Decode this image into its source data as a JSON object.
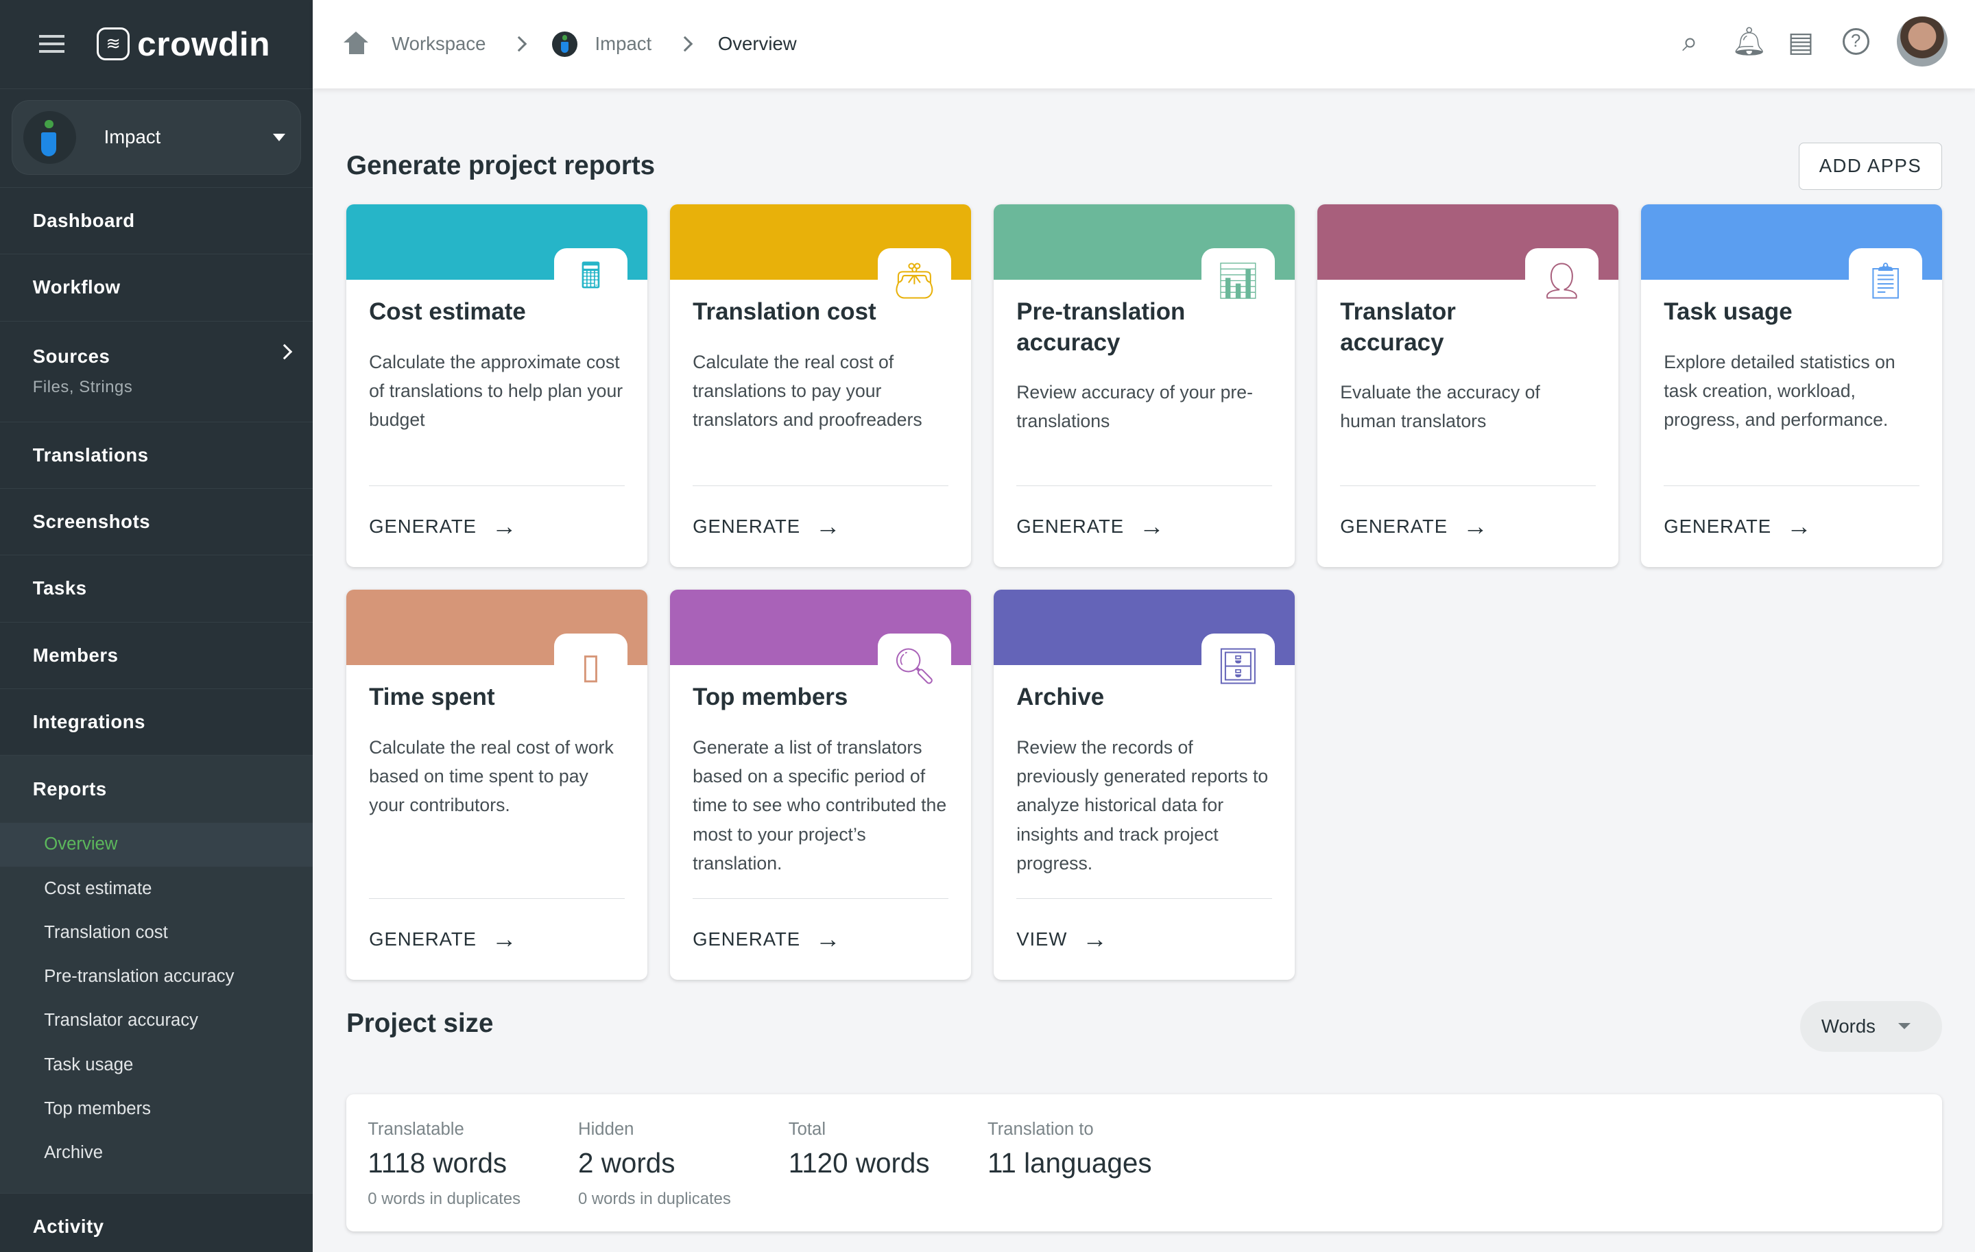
{
  "app": {
    "logo_text": "crowdin"
  },
  "project": {
    "name": "Impact"
  },
  "sidebar": {
    "items": [
      {
        "label": "Dashboard"
      },
      {
        "label": "Workflow"
      },
      {
        "label": "Sources",
        "sub": "Files, Strings"
      },
      {
        "label": "Translations"
      },
      {
        "label": "Screenshots"
      },
      {
        "label": "Tasks"
      },
      {
        "label": "Members"
      },
      {
        "label": "Integrations"
      }
    ],
    "reports": {
      "label": "Reports",
      "items": [
        "Overview",
        "Cost estimate",
        "Translation cost",
        "Pre-translation accuracy",
        "Translator accuracy",
        "Task usage",
        "Top members",
        "Archive"
      ],
      "active": "Overview"
    },
    "activity": "Activity"
  },
  "breadcrumb": [
    "Workspace",
    "Impact",
    "Overview"
  ],
  "topbar": {
    "icons": [
      "search-icon",
      "bell-icon",
      "chat-icon",
      "help-icon",
      "avatar"
    ]
  },
  "main": {
    "title": "Generate project reports",
    "add_apps": "ADD APPS",
    "cards": [
      {
        "title": "Cost estimate",
        "desc": "Calculate the approximate cost of translations to help plan your budget",
        "action": "GENERATE",
        "color": "#26b5c8",
        "icon": "calculator-icon"
      },
      {
        "title": "Translation cost",
        "desc": "Calculate the real cost of translations to pay your translators and proofreaders",
        "action": "GENERATE",
        "color": "#e8b10a",
        "icon": "wallet-icon"
      },
      {
        "title": "Pre-translation accuracy",
        "desc": "Review accuracy of your pre-translations",
        "action": "GENERATE",
        "color": "#6bb89a",
        "icon": "chart-icon"
      },
      {
        "title": "Translator accuracy",
        "desc": "Evaluate the accuracy of human translators",
        "action": "GENERATE",
        "color": "#a85f7c",
        "icon": "person-chart-icon"
      },
      {
        "title": "Task usage",
        "desc": "Explore detailed statistics on task creation, workload, progress, and performance.",
        "action": "GENERATE",
        "color": "#5b9ef0",
        "icon": "clipboard-icon"
      },
      {
        "title": "Time spent",
        "desc": "Calculate the real cost of work based on time spent to pay your contributors.",
        "action": "GENERATE",
        "color": "#d69678",
        "icon": "document-icon"
      },
      {
        "title": "Top members",
        "desc": "Generate a list of translators based on a specific period of time to see who contributed the most to your project’s translation.",
        "action": "GENERATE",
        "color": "#a962b8",
        "icon": "search-people-icon"
      },
      {
        "title": "Archive",
        "desc": "Review the records of previously generated reports to analyze historical data for insights and track project progress.",
        "action": "VIEW",
        "color": "#6464b8",
        "icon": "archive-icon"
      }
    ],
    "project_size": {
      "title": "Project size",
      "unit_select": "Words",
      "stats": [
        {
          "label": "Translatable",
          "value": "1118 words",
          "sub": "0 words in duplicates"
        },
        {
          "label": "Hidden",
          "value": "2 words",
          "sub": "0 words in duplicates"
        },
        {
          "label": "Total",
          "value": "1120 words"
        },
        {
          "label": "Translation to",
          "value": "11 languages"
        }
      ]
    }
  }
}
